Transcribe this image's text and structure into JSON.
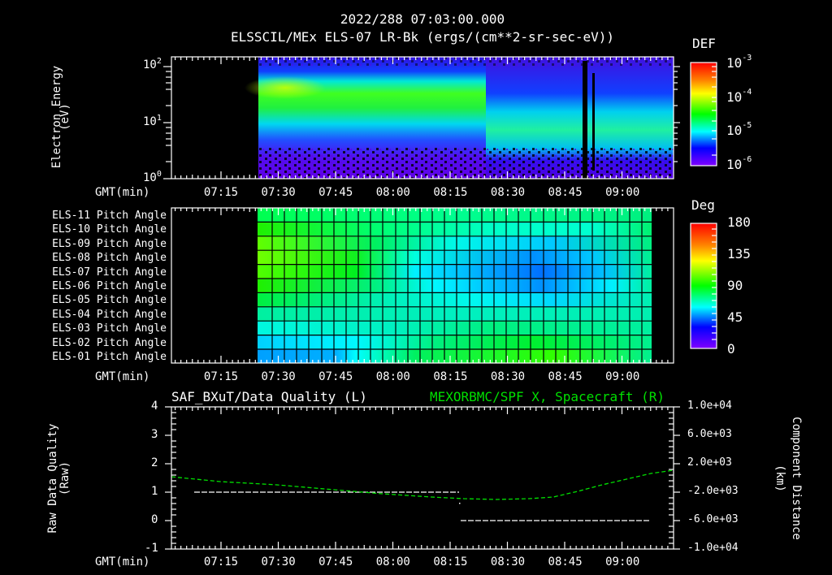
{
  "header": {
    "timestamp": "2022/288 07:03:00.000",
    "subtitle": "ELSSCIL/MEx ELS-07 LR-Bk  (ergs/(cm**2-sr-sec-eV))"
  },
  "time_axis": {
    "label": "GMT(min)",
    "ticks": [
      "07:15",
      "07:30",
      "07:45",
      "08:00",
      "08:15",
      "08:30",
      "08:45",
      "09:00"
    ]
  },
  "panel1": {
    "ylabel_line1": "Electron Energy",
    "ylabel_line2": "(eV)",
    "yticks": [
      {
        "base": "10",
        "exp": "2"
      },
      {
        "base": "10",
        "exp": "1"
      },
      {
        "base": "10",
        "exp": "0"
      }
    ],
    "colorbar": {
      "title": "DEF",
      "ticks": [
        {
          "base": "10",
          "exp": "-3"
        },
        {
          "base": "10",
          "exp": "-4"
        },
        {
          "base": "10",
          "exp": "-5"
        },
        {
          "base": "10",
          "exp": "-6"
        }
      ]
    }
  },
  "panel2": {
    "row_labels": [
      "ELS-11 Pitch Angle",
      "ELS-10 Pitch Angle",
      "ELS-09 Pitch Angle",
      "ELS-08 Pitch Angle",
      "ELS-07 Pitch Angle",
      "ELS-06 Pitch Angle",
      "ELS-05 Pitch Angle",
      "ELS-04 Pitch Angle",
      "ELS-03 Pitch Angle",
      "ELS-02 Pitch Angle",
      "ELS-01 Pitch Angle"
    ],
    "colorbar": {
      "title": "Deg",
      "ticks": [
        "180",
        "135",
        "90",
        "45",
        "0"
      ]
    }
  },
  "panel3": {
    "title_left": "SAF_BXuT/Data Quality (L)",
    "title_right": "MEXORBMC/SPF X, Spacecraft (R)",
    "title_right_color": "#00e000",
    "ylabel_left_line1": "Raw Data Quality",
    "ylabel_left_line2": "(Raw)",
    "yticks_left": [
      "4",
      "3",
      "2",
      "1",
      "0",
      "-1"
    ],
    "ylabel_right_line1": "Component Distance",
    "ylabel_right_line2": "(km)",
    "yticks_right": [
      "1.0e+04",
      "6.0e+03",
      "2.0e+03",
      "-2.0e+03",
      "-6.0e+03",
      "-1.0e+04"
    ]
  },
  "chart_data": [
    {
      "type": "heatmap",
      "title": "ELSSCIL/MEx ELS-07 LR-Bk (ergs/(cm**2-sr-sec-eV))",
      "xlabel": "GMT(min)",
      "ylabel": "Electron Energy (eV)",
      "x_ticks": [
        "07:15",
        "07:30",
        "07:45",
        "08:00",
        "08:15",
        "08:30",
        "08:45",
        "09:00"
      ],
      "xlim": [
        "07:03",
        "09:13"
      ],
      "yscale": "log",
      "ylim": [
        1,
        150
      ],
      "colorbar": {
        "label": "DEF",
        "scale": "log",
        "range": [
          1e-06,
          0.001
        ]
      },
      "data_start": "07:26",
      "notes": "Peak ~30-50 eV near 07:28-07:40 (~2e-4), band weakens and shifts to ~5-20 eV after 08:22; data gaps near 08:51 and 08:53"
    },
    {
      "type": "heatmap",
      "title": "ELS Pitch Angle",
      "xlabel": "GMT(min)",
      "y_categories": [
        "ELS-01",
        "ELS-02",
        "ELS-03",
        "ELS-04",
        "ELS-05",
        "ELS-06",
        "ELS-07",
        "ELS-08",
        "ELS-09",
        "ELS-10",
        "ELS-11"
      ],
      "colorbar": {
        "label": "Deg",
        "range": [
          0,
          180
        ]
      },
      "data_range": [
        "07:26",
        "09:03"
      ],
      "notes": "ELS-08/09 ~110-120 deg near 07:30, minimum ~40 deg for ELS-07/08 near 08:40; ELS-01 ~45 deg at 07:30 rising to ~105 deg near 08:45"
    },
    {
      "type": "line",
      "title_left": "SAF_BXuT/Data Quality (L)",
      "title_right": "MEXORBMC/SPF X, Spacecraft (R)",
      "xlabel": "GMT(min)",
      "ylim_left": [
        -1,
        4
      ],
      "ylim_right": [
        -10000,
        10000
      ],
      "series": [
        {
          "name": "Data Quality (L)",
          "color": "#ffffff",
          "x": [
            "07:09",
            "08:17",
            "08:17",
            "09:03"
          ],
          "y": [
            1,
            1,
            0,
            0
          ]
        },
        {
          "name": "SPF X (R, km)",
          "color": "#00e000",
          "x": [
            "07:03",
            "07:30",
            "07:45",
            "08:00",
            "08:15",
            "08:30",
            "08:45",
            "09:00",
            "09:13"
          ],
          "y": [
            2800,
            1500,
            0,
            -1100,
            -2300,
            -2400,
            -1200,
            1000,
            3000
          ]
        }
      ]
    }
  ]
}
